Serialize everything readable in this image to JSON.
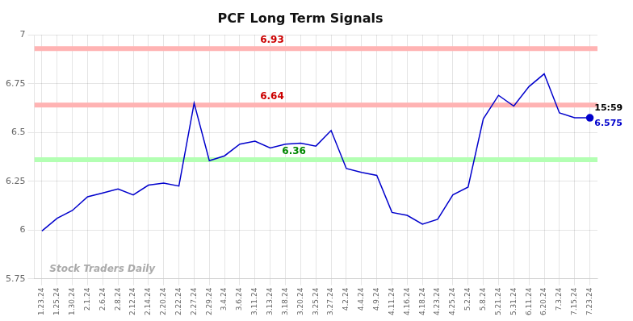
{
  "chart_data": {
    "type": "line",
    "title": "PCF Long Term Signals",
    "categories": [
      "1.23.24",
      "1.25.24",
      "1.30.24",
      "2.1.24",
      "2.6.24",
      "2.8.24",
      "2.12.24",
      "2.14.24",
      "2.20.24",
      "2.22.24",
      "2.27.24",
      "2.29.24",
      "3.4.24",
      "3.6.24",
      "3.11.24",
      "3.13.24",
      "3.18.24",
      "3.20.24",
      "3.25.24",
      "3.27.24",
      "4.2.24",
      "4.4.24",
      "4.9.24",
      "4.11.24",
      "4.16.24",
      "4.18.24",
      "4.23.24",
      "4.25.24",
      "5.2.24",
      "5.8.24",
      "5.21.24",
      "5.31.24",
      "6.11.24",
      "6.20.24",
      "7.3.24",
      "7.15.24",
      "7.23.24"
    ],
    "values": [
      5.995,
      6.06,
      6.1,
      6.17,
      6.19,
      6.21,
      6.18,
      6.23,
      6.24,
      6.225,
      6.65,
      6.355,
      6.38,
      6.44,
      6.455,
      6.42,
      6.44,
      6.445,
      6.43,
      6.51,
      6.315,
      6.295,
      6.28,
      6.09,
      6.075,
      6.03,
      6.055,
      6.18,
      6.22,
      6.57,
      6.69,
      6.635,
      6.735,
      6.8,
      6.6,
      6.575,
      6.575
    ],
    "color": "#0000cc",
    "ylim": [
      5.75,
      7.0
    ],
    "yticks": [
      5.75,
      6,
      6.25,
      6.5,
      6.75,
      7
    ],
    "grid": true,
    "reference_lines": [
      {
        "value": 6.93,
        "label": "6.93",
        "color": "#ffb3b3",
        "label_color": "#cc0000"
      },
      {
        "value": 6.64,
        "label": "6.64",
        "color": "#ffb3b3",
        "label_color": "#cc0000"
      },
      {
        "value": 6.36,
        "label": "6.36",
        "color": "#b3ffb3",
        "label_color": "#008800"
      }
    ],
    "annotations": [
      {
        "text": "15:59",
        "color": "#000000"
      },
      {
        "text": "6.575",
        "color": "#0000cc"
      }
    ],
    "watermark": {
      "text": "Stock Traders Daily",
      "color": "#aaaaaa"
    }
  }
}
